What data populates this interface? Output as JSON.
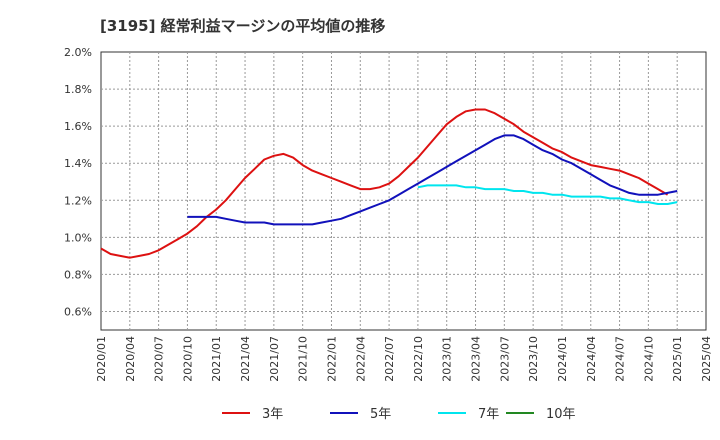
{
  "chart_data": {
    "type": "line",
    "title": "[3195]  経常利益マージンの平均値の推移",
    "xlabel": "",
    "ylabel": "",
    "ylim": [
      0.5,
      2.0
    ],
    "yticks": [
      "0.6%",
      "0.8%",
      "1.0%",
      "1.2%",
      "1.4%",
      "1.6%",
      "1.8%",
      "2.0%"
    ],
    "xticks": [
      "2020/01",
      "2020/04",
      "2020/07",
      "2020/10",
      "2021/01",
      "2021/04",
      "2021/07",
      "2021/10",
      "2022/01",
      "2022/04",
      "2022/07",
      "2022/10",
      "2023/01",
      "2023/04",
      "2023/07",
      "2023/10",
      "2024/01",
      "2024/04",
      "2024/07",
      "2024/10",
      "2025/01",
      "2025/04"
    ],
    "grid": true,
    "legend_position": "bottom",
    "series": [
      {
        "name": "3年",
        "color": "#dd1111",
        "points": [
          [
            "2020/01",
            0.94
          ],
          [
            "2020/02",
            0.91
          ],
          [
            "2020/03",
            0.9
          ],
          [
            "2020/04",
            0.89
          ],
          [
            "2020/05",
            0.9
          ],
          [
            "2020/06",
            0.91
          ],
          [
            "2020/07",
            0.93
          ],
          [
            "2020/08",
            0.96
          ],
          [
            "2020/09",
            0.99
          ],
          [
            "2020/10",
            1.02
          ],
          [
            "2020/11",
            1.06
          ],
          [
            "2020/12",
            1.11
          ],
          [
            "2021/01",
            1.15
          ],
          [
            "2021/02",
            1.2
          ],
          [
            "2021/03",
            1.26
          ],
          [
            "2021/04",
            1.32
          ],
          [
            "2021/05",
            1.37
          ],
          [
            "2021/06",
            1.42
          ],
          [
            "2021/07",
            1.44
          ],
          [
            "2021/08",
            1.45
          ],
          [
            "2021/09",
            1.43
          ],
          [
            "2021/10",
            1.39
          ],
          [
            "2021/11",
            1.36
          ],
          [
            "2021/12",
            1.34
          ],
          [
            "2022/01",
            1.32
          ],
          [
            "2022/02",
            1.3
          ],
          [
            "2022/03",
            1.28
          ],
          [
            "2022/04",
            1.26
          ],
          [
            "2022/05",
            1.26
          ],
          [
            "2022/06",
            1.27
          ],
          [
            "2022/07",
            1.29
          ],
          [
            "2022/08",
            1.33
          ],
          [
            "2022/09",
            1.38
          ],
          [
            "2022/10",
            1.43
          ],
          [
            "2022/11",
            1.49
          ],
          [
            "2022/12",
            1.55
          ],
          [
            "2023/01",
            1.61
          ],
          [
            "2023/02",
            1.65
          ],
          [
            "2023/03",
            1.68
          ],
          [
            "2023/04",
            1.69
          ],
          [
            "2023/05",
            1.69
          ],
          [
            "2023/06",
            1.67
          ],
          [
            "2023/07",
            1.64
          ],
          [
            "2023/08",
            1.61
          ],
          [
            "2023/09",
            1.57
          ],
          [
            "2023/10",
            1.54
          ],
          [
            "2023/11",
            1.51
          ],
          [
            "2023/12",
            1.48
          ],
          [
            "2024/01",
            1.46
          ],
          [
            "2024/02",
            1.43
          ],
          [
            "2024/03",
            1.41
          ],
          [
            "2024/04",
            1.39
          ],
          [
            "2024/05",
            1.38
          ],
          [
            "2024/06",
            1.37
          ],
          [
            "2024/07",
            1.36
          ],
          [
            "2024/08",
            1.34
          ],
          [
            "2024/09",
            1.32
          ],
          [
            "2024/10",
            1.29
          ],
          [
            "2024/11",
            1.26
          ],
          [
            "2024/12",
            1.23
          ]
        ]
      },
      {
        "name": "5年",
        "color": "#1111bb",
        "points": [
          [
            "2020/10",
            1.11
          ],
          [
            "2020/11",
            1.11
          ],
          [
            "2020/12",
            1.11
          ],
          [
            "2021/01",
            1.11
          ],
          [
            "2021/02",
            1.1
          ],
          [
            "2021/03",
            1.09
          ],
          [
            "2021/04",
            1.08
          ],
          [
            "2021/05",
            1.08
          ],
          [
            "2021/06",
            1.08
          ],
          [
            "2021/07",
            1.07
          ],
          [
            "2021/08",
            1.07
          ],
          [
            "2021/09",
            1.07
          ],
          [
            "2021/10",
            1.07
          ],
          [
            "2021/11",
            1.07
          ],
          [
            "2021/12",
            1.08
          ],
          [
            "2022/01",
            1.09
          ],
          [
            "2022/02",
            1.1
          ],
          [
            "2022/03",
            1.12
          ],
          [
            "2022/04",
            1.14
          ],
          [
            "2022/05",
            1.16
          ],
          [
            "2022/06",
            1.18
          ],
          [
            "2022/07",
            1.2
          ],
          [
            "2022/08",
            1.23
          ],
          [
            "2022/09",
            1.26
          ],
          [
            "2022/10",
            1.29
          ],
          [
            "2022/11",
            1.32
          ],
          [
            "2022/12",
            1.35
          ],
          [
            "2023/01",
            1.38
          ],
          [
            "2023/02",
            1.41
          ],
          [
            "2023/03",
            1.44
          ],
          [
            "2023/04",
            1.47
          ],
          [
            "2023/05",
            1.5
          ],
          [
            "2023/06",
            1.53
          ],
          [
            "2023/07",
            1.55
          ],
          [
            "2023/08",
            1.55
          ],
          [
            "2023/09",
            1.53
          ],
          [
            "2023/10",
            1.5
          ],
          [
            "2023/11",
            1.47
          ],
          [
            "2023/12",
            1.45
          ],
          [
            "2024/01",
            1.42
          ],
          [
            "2024/02",
            1.4
          ],
          [
            "2024/03",
            1.37
          ],
          [
            "2024/04",
            1.34
          ],
          [
            "2024/05",
            1.31
          ],
          [
            "2024/06",
            1.28
          ],
          [
            "2024/07",
            1.26
          ],
          [
            "2024/08",
            1.24
          ],
          [
            "2024/09",
            1.23
          ],
          [
            "2024/10",
            1.23
          ],
          [
            "2024/11",
            1.23
          ],
          [
            "2024/12",
            1.24
          ],
          [
            "2025/01",
            1.25
          ]
        ]
      },
      {
        "name": "7年",
        "color": "#00e5ee",
        "points": [
          [
            "2022/10",
            1.27
          ],
          [
            "2022/11",
            1.28
          ],
          [
            "2022/12",
            1.28
          ],
          [
            "2023/01",
            1.28
          ],
          [
            "2023/02",
            1.28
          ],
          [
            "2023/03",
            1.27
          ],
          [
            "2023/04",
            1.27
          ],
          [
            "2023/05",
            1.26
          ],
          [
            "2023/06",
            1.26
          ],
          [
            "2023/07",
            1.26
          ],
          [
            "2023/08",
            1.25
          ],
          [
            "2023/09",
            1.25
          ],
          [
            "2023/10",
            1.24
          ],
          [
            "2023/11",
            1.24
          ],
          [
            "2023/12",
            1.23
          ],
          [
            "2024/01",
            1.23
          ],
          [
            "2024/02",
            1.22
          ],
          [
            "2024/03",
            1.22
          ],
          [
            "2024/04",
            1.22
          ],
          [
            "2024/05",
            1.22
          ],
          [
            "2024/06",
            1.21
          ],
          [
            "2024/07",
            1.21
          ],
          [
            "2024/08",
            1.2
          ],
          [
            "2024/09",
            1.19
          ],
          [
            "2024/10",
            1.19
          ],
          [
            "2024/11",
            1.18
          ],
          [
            "2024/12",
            1.18
          ],
          [
            "2025/01",
            1.19
          ]
        ]
      },
      {
        "name": "10年",
        "color": "#228822",
        "points": []
      }
    ]
  }
}
